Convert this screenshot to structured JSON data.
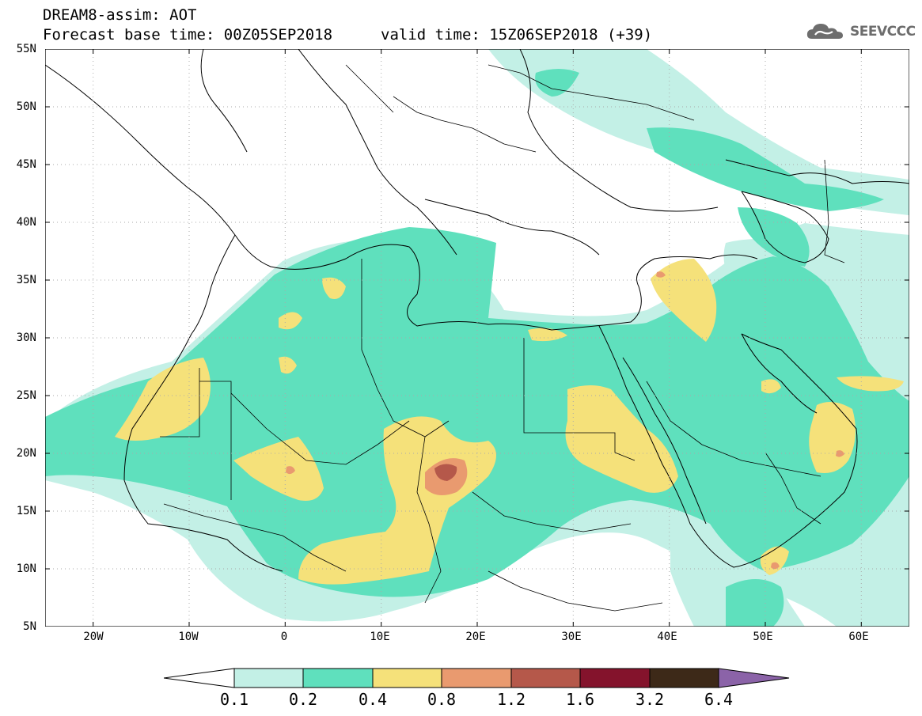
{
  "title": {
    "line1": "DREAM8-assim: AOT",
    "base_time": "Forecast base time: 00Z05SEP2018",
    "valid_time": "valid time: 15Z06SEP2018 (+39)"
  },
  "logo": {
    "icon": "cloud-icon",
    "text": "SEEVCCC"
  },
  "lat_labels": [
    "55N",
    "50N",
    "45N",
    "40N",
    "35N",
    "30N",
    "25N",
    "20N",
    "15N",
    "10N",
    "5N"
  ],
  "lon_labels": [
    "20W",
    "10W",
    "0",
    "10E",
    "20E",
    "30E",
    "40E",
    "50E",
    "60E"
  ],
  "extent": {
    "lon_min": -25,
    "lon_max": 65,
    "lat_min": 5,
    "lat_max": 55
  },
  "colorbar": {
    "ticks": [
      "0.1",
      "0.2",
      "0.4",
      "0.8",
      "1.2",
      "1.6",
      "3.2",
      "6.4"
    ],
    "colors": [
      "#ffffff",
      "#c3f0e6",
      "#5fe0bd",
      "#f5e17a",
      "#e99a6f",
      "#b5584a",
      "#84132c",
      "#3d2918",
      "#8b63a8"
    ]
  }
}
